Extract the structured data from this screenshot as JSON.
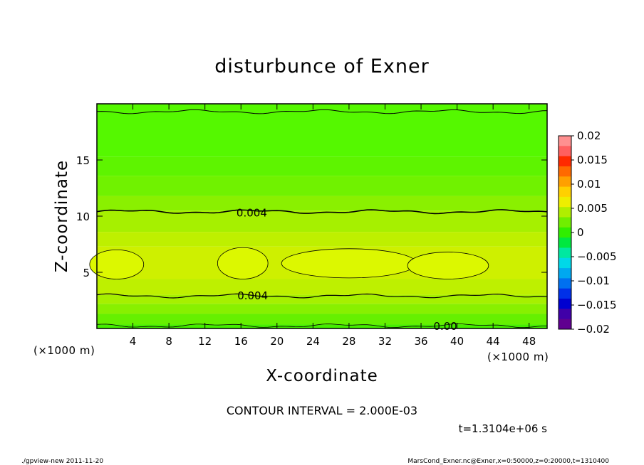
{
  "chart_data": {
    "type": "heatmap",
    "title": "disturbunce of Exner",
    "xlabel": "X-coordinate",
    "ylabel": "Z-coordinate",
    "x_unit": "(×1000 m)",
    "y_unit": "(×1000 m)",
    "xlim": [
      0,
      50
    ],
    "ylim": [
      0,
      20
    ],
    "x_ticks": [
      "4",
      "8",
      "12",
      "16",
      "20",
      "24",
      "28",
      "32",
      "36",
      "40",
      "44",
      "48"
    ],
    "y_ticks": [
      "5",
      "10",
      "15"
    ],
    "contour_interval": "CONTOUR INTERVAL = 2.000E-03",
    "contour_labels": [
      {
        "text": "0.004",
        "x": 17.2,
        "z": 10.3
      },
      {
        "text": "0.004",
        "x": 17.3,
        "z": 2.9
      },
      {
        "text": "0.00",
        "x": 38.7,
        "z": 0.2
      }
    ],
    "layers": [
      {
        "z": [
          0.0,
          0.35
        ],
        "value": 0.0015,
        "color": "#44ee00"
      },
      {
        "z": [
          0.35,
          1.3
        ],
        "value": 0.0025,
        "color": "#66f000"
      },
      {
        "z": [
          1.3,
          2.2
        ],
        "value": 0.0035,
        "color": "#88f000"
      },
      {
        "z": [
          2.2,
          3.0
        ],
        "value": 0.0045,
        "color": "#a6f000"
      },
      {
        "z": [
          3.0,
          4.4
        ],
        "value": 0.0055,
        "color": "#bef000"
      },
      {
        "z": [
          4.4,
          7.3
        ],
        "value": 0.0065,
        "color": "#cef000"
      },
      {
        "z": [
          7.3,
          8.6
        ],
        "value": 0.0055,
        "color": "#bef000"
      },
      {
        "z": [
          8.6,
          10.5
        ],
        "value": 0.0045,
        "color": "#a6f000"
      },
      {
        "z": [
          10.5,
          11.8
        ],
        "value": 0.0035,
        "color": "#8af000"
      },
      {
        "z": [
          11.8,
          13.6
        ],
        "value": 0.0025,
        "color": "#70f200"
      },
      {
        "z": [
          13.6,
          15.3
        ],
        "value": 0.0015,
        "color": "#5ef400"
      },
      {
        "z": [
          15.3,
          20.0
        ],
        "value": 0.0005,
        "color": "#55f800"
      }
    ],
    "colorbar": {
      "labels": [
        "0.02",
        "0.015",
        "0.01",
        "0.005",
        "0",
        "−0.005",
        "−0.01",
        "−0.015",
        "−0.02"
      ],
      "colors": [
        "#ff9090",
        "#ff6060",
        "#ff2a00",
        "#ff6a00",
        "#ffa000",
        "#ffd000",
        "#eeee00",
        "#b0ee00",
        "#70ee00",
        "#30ee00",
        "#00e840",
        "#00e8a0",
        "#00d8e8",
        "#00a8f0",
        "#0070f0",
        "#0030e8",
        "#0000d0",
        "#4000a8",
        "#600090"
      ]
    },
    "time_label": "t=1.3104e+06 s"
  },
  "footer": {
    "left": "./gpview-new   2011-11-20",
    "right": "MarsCond_Exner.nc@Exner,x=0:50000,z=0:20000,t=1310400"
  }
}
